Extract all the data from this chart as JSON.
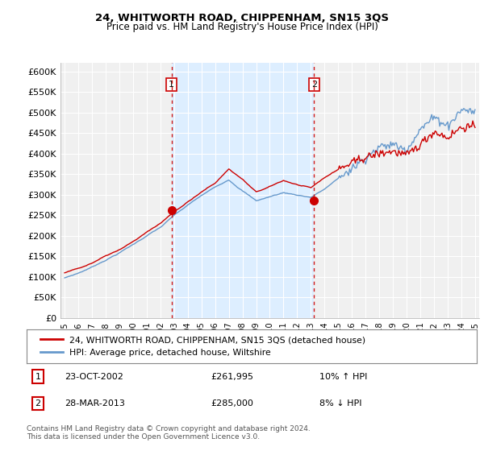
{
  "title": "24, WHITWORTH ROAD, CHIPPENHAM, SN15 3QS",
  "subtitle": "Price paid vs. HM Land Registry's House Price Index (HPI)",
  "ylabel_ticks": [
    "£0",
    "£50K",
    "£100K",
    "£150K",
    "£200K",
    "£250K",
    "£300K",
    "£350K",
    "£400K",
    "£450K",
    "£500K",
    "£550K",
    "£600K"
  ],
  "ytick_values": [
    0,
    50000,
    100000,
    150000,
    200000,
    250000,
    300000,
    350000,
    400000,
    450000,
    500000,
    550000,
    600000
  ],
  "ylim": [
    0,
    620000
  ],
  "xlim_start": 1994.7,
  "xlim_end": 2025.3,
  "sale1_x": 2002.81,
  "sale1_y": 261995,
  "sale2_x": 2013.24,
  "sale2_y": 285000,
  "sale_color": "#cc0000",
  "hpi_color": "#6699cc",
  "shade_color": "#ddeeff",
  "legend_label1": "24, WHITWORTH ROAD, CHIPPENHAM, SN15 3QS (detached house)",
  "legend_label2": "HPI: Average price, detached house, Wiltshire",
  "footer": "Contains HM Land Registry data © Crown copyright and database right 2024.\nThis data is licensed under the Open Government Licence v3.0.",
  "xticks": [
    1995,
    1996,
    1997,
    1998,
    1999,
    2000,
    2001,
    2002,
    2003,
    2004,
    2005,
    2006,
    2007,
    2008,
    2009,
    2010,
    2011,
    2012,
    2013,
    2014,
    2015,
    2016,
    2017,
    2018,
    2019,
    2020,
    2021,
    2022,
    2023,
    2024,
    2025
  ],
  "background_color": "#ffffff",
  "plot_bg_color": "#f0f0f0",
  "grid_color": "#ffffff"
}
